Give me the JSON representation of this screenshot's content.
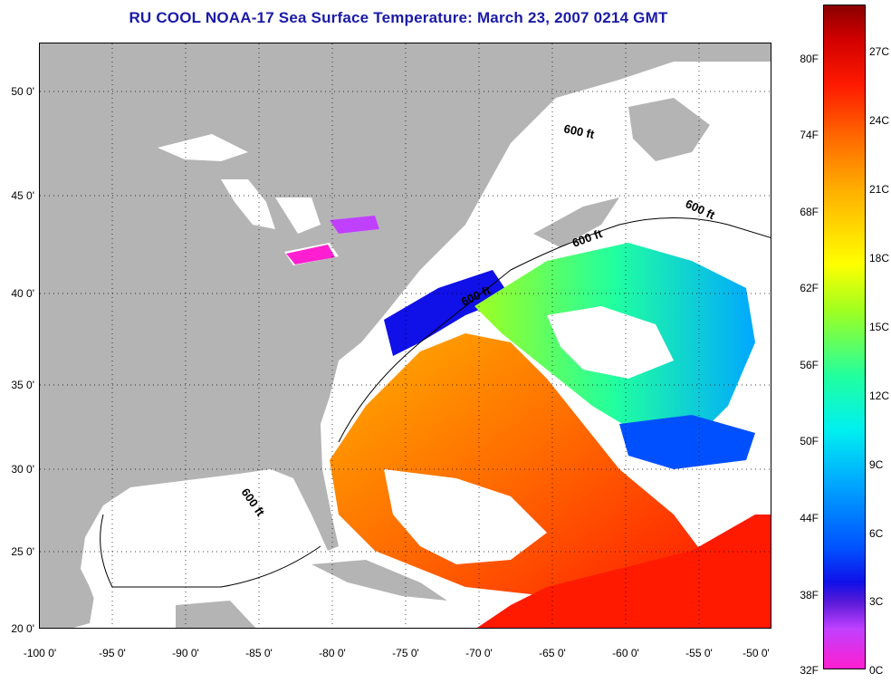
{
  "title": "RU COOL  NOAA-17  Sea Surface Temperature:  March 23, 2007 0214 GMT",
  "lat_ticks": [
    "50 0'",
    "45 0'",
    "40 0'",
    "35 0'",
    "30 0'",
    "25 0'",
    "20 0'"
  ],
  "lon_ticks": [
    "-100 0'",
    "-95 0'",
    "-90 0'",
    "-85 0'",
    "-80 0'",
    "-75 0'",
    "-70 0'",
    "-65 0'",
    "-60 0'",
    "-55 0'",
    "-50 0'"
  ],
  "colorbar": {
    "fahrenheit": [
      "80F",
      "74F",
      "68F",
      "62F",
      "56F",
      "50F",
      "44F",
      "38F",
      "32F"
    ],
    "celsius": [
      "27C",
      "24C",
      "21C",
      "18C",
      "15C",
      "12C",
      "9C",
      "6C",
      "3C",
      "0C"
    ]
  },
  "contour_label": "600 ft",
  "colors": {
    "title": "#1a1aa8",
    "land": "#b4b4b4",
    "cloud": "#ffffff",
    "cold": "#ff1fd0",
    "warm": "#8a0000"
  }
}
